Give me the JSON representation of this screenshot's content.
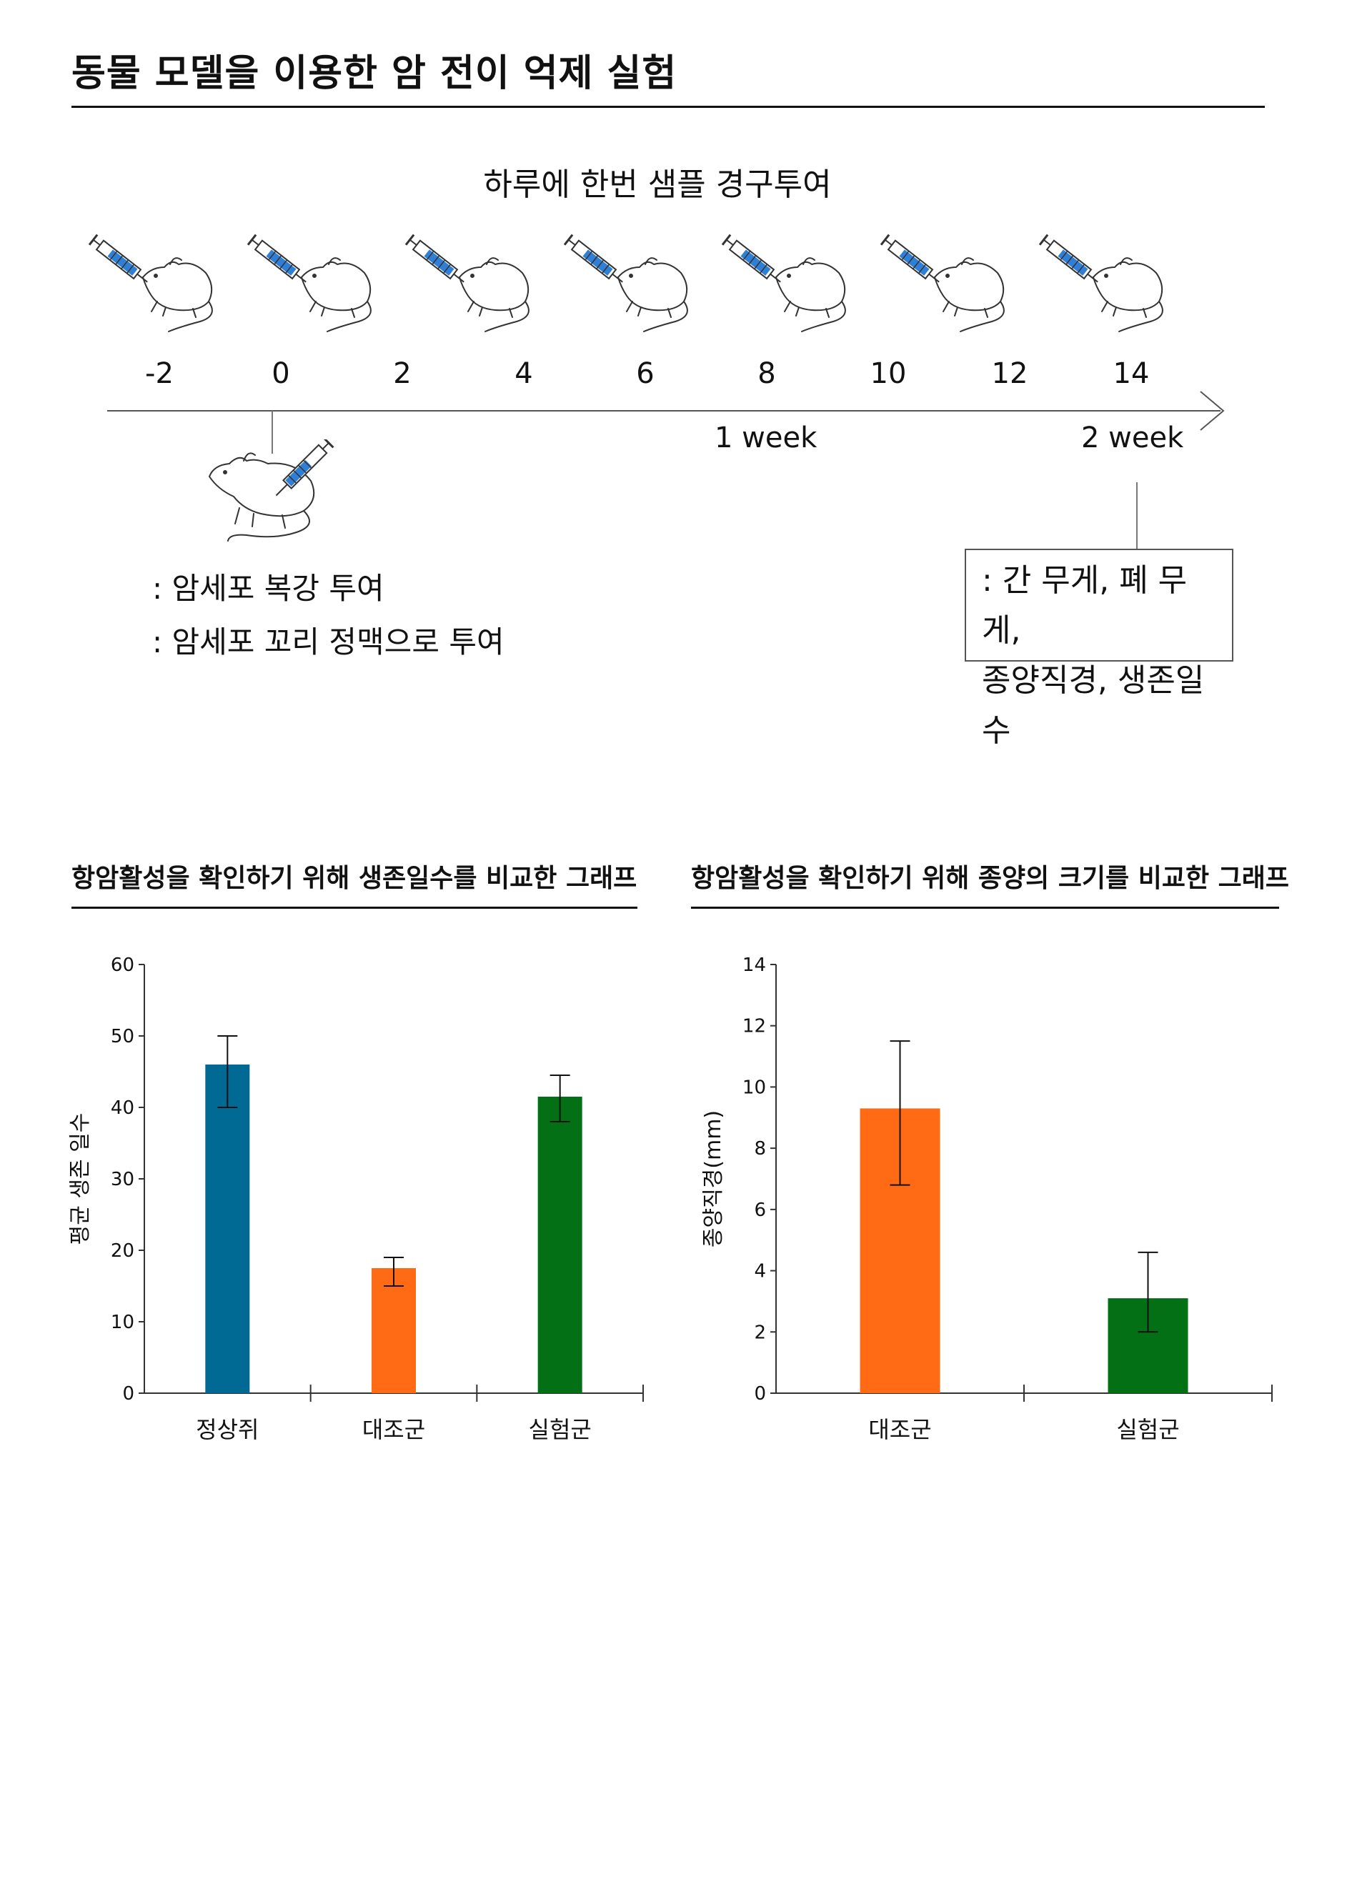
{
  "header": {
    "title": "동물 모델을 이용한 암 전이 억제 실험"
  },
  "timeline": {
    "dosing_label": "하루에 한번 샘플 경구투여",
    "days": [
      "-2",
      "0",
      "2",
      "4",
      "6",
      "8",
      "10",
      "12",
      "14"
    ],
    "week1": "1 week",
    "week2": "2 week",
    "injection_notes": [
      ": 암세포 복강 투여",
      ": 암세포 꼬리 정맥으로 투여"
    ],
    "measure_box": [
      ": 간 무게, 폐 무게,",
      "종양직경, 생존일수"
    ]
  },
  "colors": {
    "blue": "#006994",
    "orange": "#ff6a14",
    "green": "#037015",
    "syringe": "#2f7fd6"
  },
  "chart_data": [
    {
      "type": "bar",
      "title": "항암활성을 확인하기 위해 생존일수를 비교한 그래프",
      "ylabel": "평균 생존 일수",
      "xlabel": "",
      "categories": [
        "정상쥐",
        "대조군",
        "실험군"
      ],
      "values": [
        46,
        17.5,
        41.5
      ],
      "error_low": [
        40,
        15,
        38
      ],
      "error_high": [
        50,
        19,
        44.5
      ],
      "bar_colors": [
        "#006994",
        "#ff6a14",
        "#037015"
      ],
      "ylim": [
        0,
        60
      ],
      "yticks": [
        "0",
        "10",
        "20",
        "30",
        "40",
        "50",
        "60"
      ],
      "grid": false
    },
    {
      "type": "bar",
      "title": "항암활성을 확인하기 위해 종양의 크기를 비교한 그래프",
      "ylabel": "종양직경(mm)",
      "xlabel": "",
      "categories": [
        "대조군",
        "실험군"
      ],
      "values": [
        9.3,
        3.1
      ],
      "error_low": [
        6.8,
        2.0
      ],
      "error_high": [
        11.5,
        4.6
      ],
      "bar_colors": [
        "#ff6a14",
        "#037015"
      ],
      "ylim": [
        0,
        14
      ],
      "yticks": [
        "0",
        "2",
        "4",
        "6",
        "8",
        "10",
        "12",
        "14"
      ],
      "grid": false
    }
  ]
}
